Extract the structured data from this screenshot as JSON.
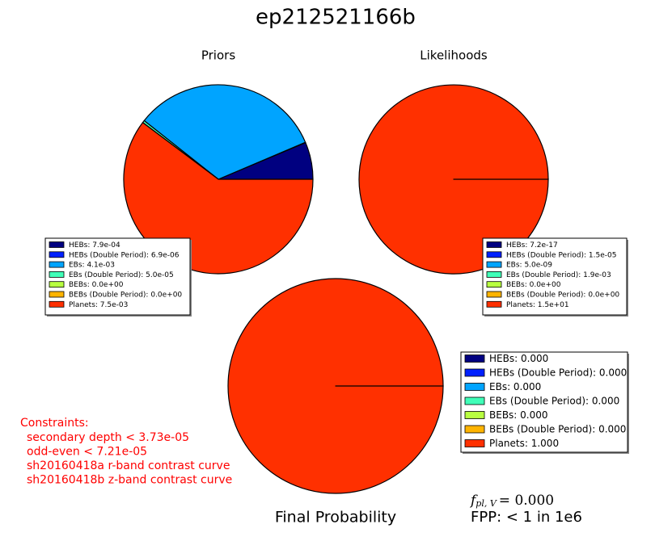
{
  "title": "ep212521166b",
  "chart_data": [
    {
      "type": "pie",
      "title": "Priors",
      "labels": [
        "HEBs: 7.9e-04",
        "HEBs (Double Period): 6.9e-06",
        "EBs: 4.1e-03",
        "EBs (Double Period): 5.0e-05",
        "BEBs: 0.0e+00",
        "BEBs (Double Period): 0.0e+00",
        "Planets: 7.5e-03"
      ],
      "values": [
        0.00079,
        6.9e-06,
        0.0041,
        5e-05,
        0,
        0,
        0.0075
      ],
      "colors": [
        "#000080",
        "#0020ff",
        "#00a4ff",
        "#40ffb8",
        "#b8ff40",
        "#ffb400",
        "#ff3000"
      ]
    },
    {
      "type": "pie",
      "title": "Likelihoods",
      "labels": [
        "HEBs: 7.2e-17",
        "HEBs (Double Period): 1.5e-05",
        "EBs: 5.0e-09",
        "EBs (Double Period): 1.9e-03",
        "BEBs: 0.0e+00",
        "BEBs (Double Period): 0.0e+00",
        "Planets: 1.5e+01"
      ],
      "values": [
        7.2e-17,
        1.5e-05,
        5e-09,
        0.0019,
        0,
        0,
        15
      ],
      "colors": [
        "#000080",
        "#0020ff",
        "#00a4ff",
        "#40ffb8",
        "#b8ff40",
        "#ffb400",
        "#ff3000"
      ]
    },
    {
      "type": "pie",
      "title": "Final Probability",
      "labels": [
        "HEBs: 0.000",
        "HEBs (Double Period): 0.000",
        "EBs: 0.000",
        "EBs (Double Period): 0.000",
        "BEBs: 0.000",
        "BEBs (Double Period): 0.000",
        "Planets: 1.000"
      ],
      "values": [
        0,
        0,
        0,
        0,
        0,
        0,
        1
      ],
      "colors": [
        "#000080",
        "#0020ff",
        "#00a4ff",
        "#40ffb8",
        "#b8ff40",
        "#ffb400",
        "#ff3000"
      ]
    }
  ],
  "constraints": {
    "title": "Constraints:",
    "lines": [
      "secondary depth < 3.73e-05",
      "odd-even < 7.21e-05",
      "sh20160418a r-band contrast curve",
      "sh20160418b z-band contrast curve"
    ]
  },
  "fpl": {
    "symbol": "f",
    "subscript": "pl, V",
    "value": "= 0.000"
  },
  "fpp": "FPP: < 1 in 1e6"
}
